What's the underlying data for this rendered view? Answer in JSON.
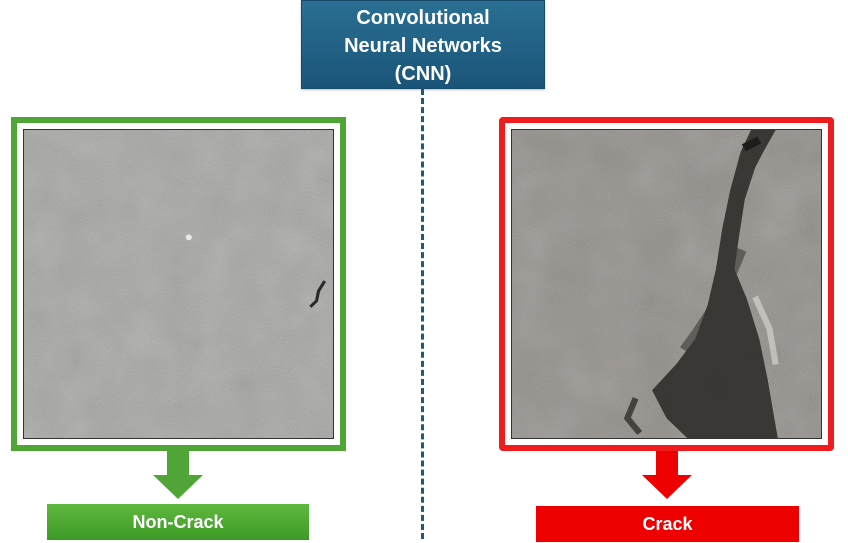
{
  "header": {
    "title_line1": "Convolutional",
    "title_line2": "Neural Networks",
    "title_line3": "(CNN)",
    "color": "#1d5a7f"
  },
  "left_panel": {
    "label": "Non-Crack",
    "frame_color": "#4fa637",
    "image": "gray concrete surface texture without crack"
  },
  "right_panel": {
    "label": "Crack",
    "frame_color": "#ee1c1c",
    "image": "gray concrete surface with dark diagonal crack"
  }
}
